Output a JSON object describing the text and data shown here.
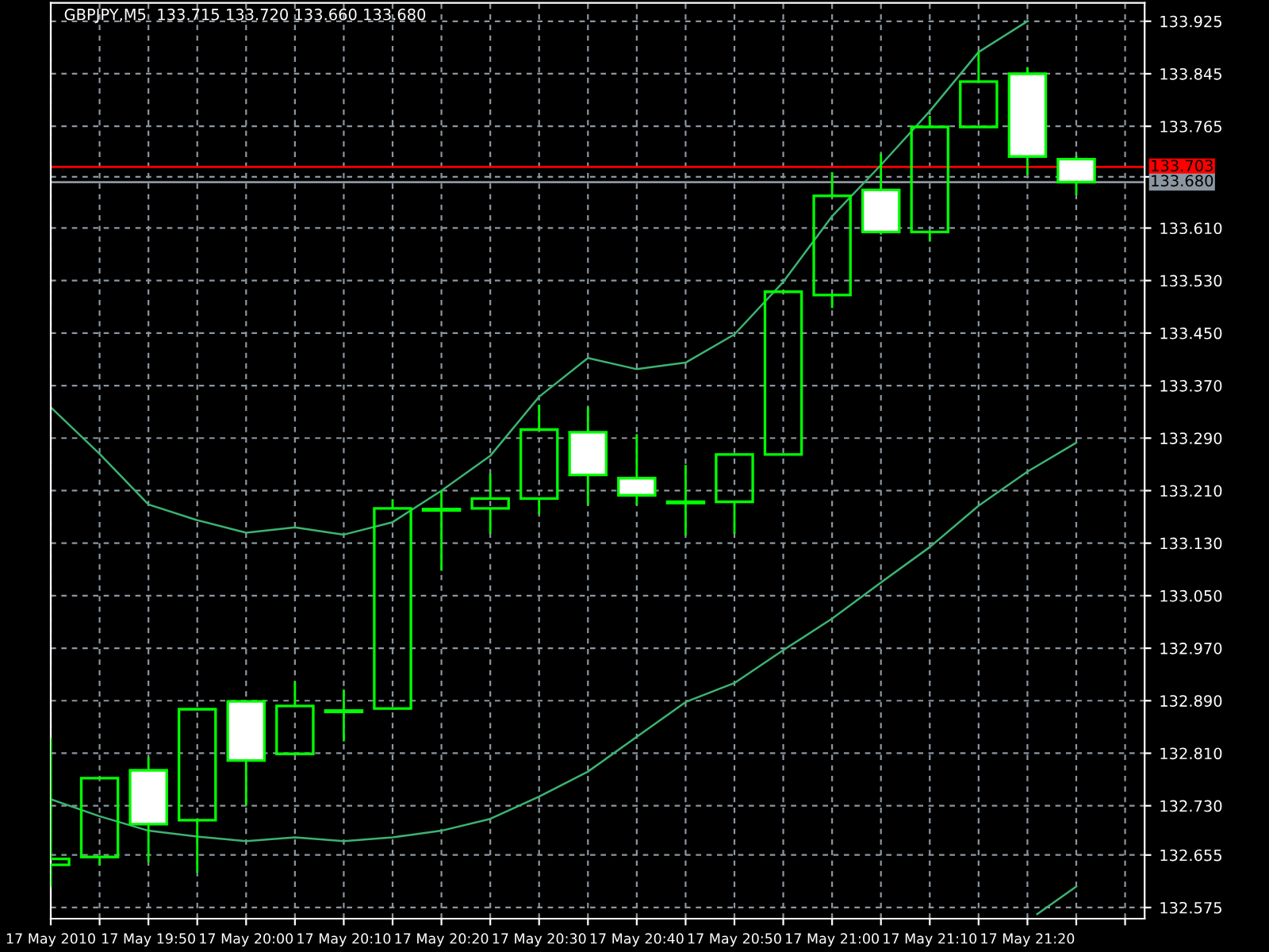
{
  "chart_data": {
    "type": "candlestick",
    "title": "GBPJPY,M5  133.715 133.720 133.660 133.680",
    "x": [
      "2010-05-17T19:40",
      "2010-05-17T19:45",
      "2010-05-17T19:50",
      "2010-05-17T19:55",
      "2010-05-17T20:00",
      "2010-05-17T20:05",
      "2010-05-17T20:10",
      "2010-05-17T20:15",
      "2010-05-17T20:20",
      "2010-05-17T20:25",
      "2010-05-17T20:30",
      "2010-05-17T20:35",
      "2010-05-17T20:40",
      "2010-05-17T20:45",
      "2010-05-17T20:50",
      "2010-05-17T20:55",
      "2010-05-17T21:00",
      "2010-05-17T21:05",
      "2010-05-17T21:10",
      "2010-05-17T21:15",
      "2010-05-17T21:20",
      "2010-05-17T21:25"
    ],
    "series": [
      {
        "type": "candlestick",
        "color": "#00ff00",
        "ohlc": [
          [
            132.64,
            132.833,
            132.606,
            132.649
          ],
          [
            132.652,
            132.772,
            132.639,
            132.772
          ],
          [
            132.784,
            132.804,
            132.644,
            132.702
          ],
          [
            132.708,
            132.877,
            132.628,
            132.877
          ],
          [
            132.889,
            132.889,
            132.73,
            132.799
          ],
          [
            132.809,
            132.919,
            132.809,
            132.882
          ],
          [
            132.873,
            132.907,
            132.828,
            132.875
          ],
          [
            132.878,
            133.197,
            132.878,
            133.183
          ],
          [
            133.18,
            133.21,
            133.088,
            133.182
          ],
          [
            133.183,
            133.236,
            133.144,
            133.198
          ],
          [
            133.198,
            133.341,
            133.174,
            133.303
          ],
          [
            133.299,
            133.337,
            133.188,
            133.234
          ],
          [
            133.229,
            133.296,
            133.188,
            133.203
          ],
          [
            133.193,
            133.249,
            133.142,
            133.191
          ],
          [
            133.193,
            133.265,
            133.144,
            133.265
          ],
          [
            133.265,
            133.513,
            133.265,
            133.513
          ],
          [
            133.508,
            133.695,
            133.488,
            133.659
          ],
          [
            133.668,
            133.723,
            133.6,
            133.604
          ],
          [
            133.604,
            133.781,
            133.59,
            133.764
          ],
          [
            133.764,
            133.879,
            133.764,
            133.833
          ],
          [
            133.845,
            133.855,
            133.691,
            133.719
          ],
          [
            133.715,
            133.72,
            133.66,
            133.68
          ]
        ]
      },
      {
        "type": "line",
        "color": "#3cb371",
        "values": [
          133.337,
          133.266,
          133.189,
          133.165,
          133.146,
          133.154,
          133.143,
          133.162,
          133.21,
          133.263,
          133.353,
          133.412,
          133.395,
          133.405,
          133.448,
          133.528,
          133.628,
          133.706,
          133.788,
          133.878,
          133.925,
          null
        ]
      },
      {
        "type": "line",
        "color": "#3cb371",
        "values": [
          132.74,
          132.714,
          132.692,
          132.683,
          132.676,
          132.682,
          132.676,
          132.682,
          132.692,
          132.71,
          132.744,
          132.782,
          132.835,
          132.888,
          132.917,
          132.967,
          133.015,
          133.07,
          133.124,
          133.187,
          133.239,
          133.283
        ]
      },
      {
        "type": "line",
        "color": "#3cb371",
        "x": [
          "2010-05-17T21:21",
          "2010-05-17T21:25"
        ],
        "values": [
          132.565,
          132.607
        ]
      }
    ],
    "xlim": [
      "2010-05-17T19:40",
      "2010-05-17T21:32"
    ],
    "xticks": [
      {
        "value": "2010-05-17T19:40",
        "label": "17 May 2010"
      },
      {
        "value": "2010-05-17T19:45",
        "label": null
      },
      {
        "value": "2010-05-17T19:50",
        "label": "17 May 19:50"
      },
      {
        "value": "2010-05-17T19:55",
        "label": null
      },
      {
        "value": "2010-05-17T20:00",
        "label": "17 May 20:00"
      },
      {
        "value": "2010-05-17T20:05",
        "label": null
      },
      {
        "value": "2010-05-17T20:10",
        "label": "17 May 20:10"
      },
      {
        "value": "2010-05-17T20:15",
        "label": null
      },
      {
        "value": "2010-05-17T20:20",
        "label": "17 May 20:20"
      },
      {
        "value": "2010-05-17T20:25",
        "label": null
      },
      {
        "value": "2010-05-17T20:30",
        "label": "17 May 20:30"
      },
      {
        "value": "2010-05-17T20:35",
        "label": null
      },
      {
        "value": "2010-05-17T20:40",
        "label": "17 May 20:40"
      },
      {
        "value": "2010-05-17T20:45",
        "label": null
      },
      {
        "value": "2010-05-17T20:50",
        "label": "17 May 20:50"
      },
      {
        "value": "2010-05-17T20:55",
        "label": null
      },
      {
        "value": "2010-05-17T21:00",
        "label": "17 May 21:00"
      },
      {
        "value": "2010-05-17T21:05",
        "label": null
      },
      {
        "value": "2010-05-17T21:10",
        "label": "17 May 21:10"
      },
      {
        "value": "2010-05-17T21:15",
        "label": null
      },
      {
        "value": "2010-05-17T21:20",
        "label": "17 May 21:20"
      },
      {
        "value": "2010-05-17T21:25",
        "label": null
      },
      {
        "value": "2010-05-17T21:30",
        "label": null
      }
    ],
    "ylim": [
      132.558,
      133.953
    ],
    "yticks": [
      {
        "value": 132.575,
        "label": "132.575"
      },
      {
        "value": 132.655,
        "label": "132.655"
      },
      {
        "value": 132.73,
        "label": "132.730"
      },
      {
        "value": 132.81,
        "label": "132.810"
      },
      {
        "value": 132.89,
        "label": "132.890"
      },
      {
        "value": 132.97,
        "label": "132.970"
      },
      {
        "value": 133.05,
        "label": "133.050"
      },
      {
        "value": 133.13,
        "label": "133.130"
      },
      {
        "value": 133.21,
        "label": "133.210"
      },
      {
        "value": 133.29,
        "label": "133.290"
      },
      {
        "value": 133.37,
        "label": "133.370"
      },
      {
        "value": 133.45,
        "label": "133.450"
      },
      {
        "value": 133.53,
        "label": "133.530"
      },
      {
        "value": 133.61,
        "label": "133.610"
      },
      {
        "value": 133.688,
        "label": null
      },
      {
        "value": 133.765,
        "label": "133.765"
      },
      {
        "value": 133.845,
        "label": "133.845"
      },
      {
        "value": 133.925,
        "label": "133.925"
      }
    ],
    "ref_lines": [
      {
        "axis": "y",
        "value": 133.703,
        "label": "133.703",
        "color": "#ff0000"
      },
      {
        "axis": "y",
        "value": 133.68,
        "label": "133.680",
        "color": "#8c96a0"
      }
    ],
    "grid": true
  }
}
